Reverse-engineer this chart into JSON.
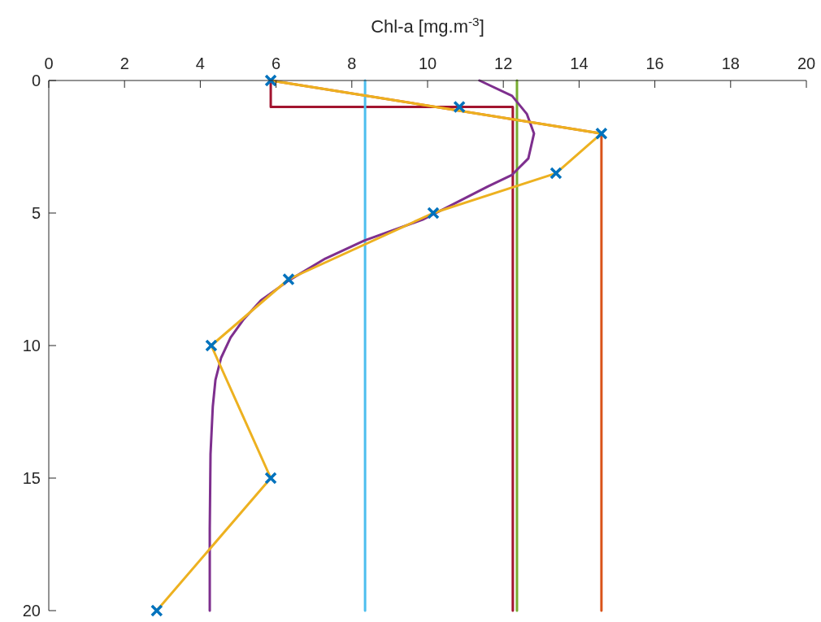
{
  "chart_data": {
    "type": "line",
    "xlabel": "Chl-a [mg.m$^{-3}$]",
    "xlim": [
      0,
      20
    ],
    "xticks": [
      0,
      2,
      4,
      6,
      8,
      10,
      12,
      14,
      16,
      18,
      20
    ],
    "ylim": [
      20,
      0
    ],
    "yticks": [
      0,
      5,
      10,
      15,
      20
    ],
    "grid": false,
    "line_style": "solid",
    "series": [
      {
        "color": "#a2142f",
        "x": [
          5.86,
          5.86,
          12.25,
          12.25
        ],
        "values": [
          0,
          1,
          1,
          20
        ]
      },
      {
        "color": "#d95319",
        "x": [
          5.86,
          14.59,
          14.59
        ],
        "values": [
          0,
          2,
          20
        ]
      },
      {
        "color": "#77ac30",
        "x": [
          12.36,
          12.36
        ],
        "values": [
          0,
          20
        ]
      },
      {
        "color": "#4dbeee",
        "x": [
          8.35,
          8.35
        ],
        "values": [
          0,
          20
        ]
      },
      {
        "color": "#7e2f8e",
        "x": [
          11.37,
          12.23,
          12.62,
          12.81,
          12.66,
          12.23,
          11.59,
          10.73,
          9.87,
          8.33,
          7.3,
          6.33,
          5.6,
          5.15,
          4.8,
          4.55,
          4.4,
          4.33,
          4.27,
          4.25,
          4.25
        ],
        "values": [
          0,
          0.58,
          1.26,
          2,
          2.94,
          3.56,
          4,
          4.63,
          5.25,
          6.04,
          6.72,
          7.55,
          8.3,
          9,
          9.7,
          10.46,
          11.3,
          12.3,
          14.1,
          16.9,
          20
        ]
      },
      {
        "color": "#edb120",
        "x": [
          5.86,
          14.59,
          13.39,
          10.15,
          6.33,
          4.29,
          5.86,
          2.85
        ],
        "values": [
          0,
          2,
          3.5,
          5,
          7.5,
          10,
          15,
          20
        ]
      },
      {
        "type": "scatter",
        "marker": "cross",
        "color": "#0072bd",
        "x": [
          5.86,
          10.84,
          14.59,
          13.39,
          10.15,
          6.33,
          4.29,
          5.86,
          2.85
        ],
        "values": [
          0,
          1,
          2,
          3.5,
          5,
          7.5,
          10,
          15,
          20
        ]
      }
    ]
  }
}
